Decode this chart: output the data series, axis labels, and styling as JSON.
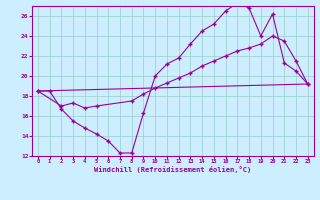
{
  "xlabel": "Windchill (Refroidissement éolien,°C)",
  "background_color": "#cceeff",
  "line_color": "#990099",
  "grid_color": "#99cccc",
  "xlim": [
    -0.5,
    23.5
  ],
  "ylim": [
    12,
    27
  ],
  "xticks": [
    0,
    1,
    2,
    3,
    4,
    5,
    6,
    7,
    8,
    9,
    10,
    11,
    12,
    13,
    14,
    15,
    16,
    17,
    18,
    19,
    20,
    21,
    22,
    23
  ],
  "yticks": [
    12,
    14,
    16,
    18,
    20,
    22,
    24,
    26
  ],
  "line1_x": [
    0,
    1,
    2,
    3,
    4,
    5,
    6,
    7,
    8,
    9,
    10,
    11,
    12,
    13,
    14,
    15,
    16,
    17,
    18,
    19,
    20,
    21,
    22,
    23
  ],
  "line1_y": [
    18.5,
    18.5,
    16.7,
    15.5,
    14.8,
    14.2,
    13.5,
    12.3,
    12.3,
    16.3,
    20.0,
    21.2,
    21.8,
    23.2,
    24.5,
    25.2,
    26.5,
    27.3,
    26.8,
    24.0,
    26.2,
    21.3,
    20.5,
    19.2
  ],
  "line2_x": [
    0,
    2,
    3,
    4,
    5,
    8,
    9,
    10,
    11,
    12,
    13,
    14,
    15,
    16,
    17,
    18,
    19,
    20,
    21,
    22,
    23
  ],
  "line2_y": [
    18.5,
    17.0,
    17.3,
    16.8,
    17.0,
    17.5,
    18.2,
    18.8,
    19.3,
    19.8,
    20.3,
    21.0,
    21.5,
    22.0,
    22.5,
    22.8,
    23.2,
    24.0,
    23.5,
    21.5,
    19.2
  ],
  "line3_x": [
    0,
    23
  ],
  "line3_y": [
    18.5,
    19.2
  ]
}
